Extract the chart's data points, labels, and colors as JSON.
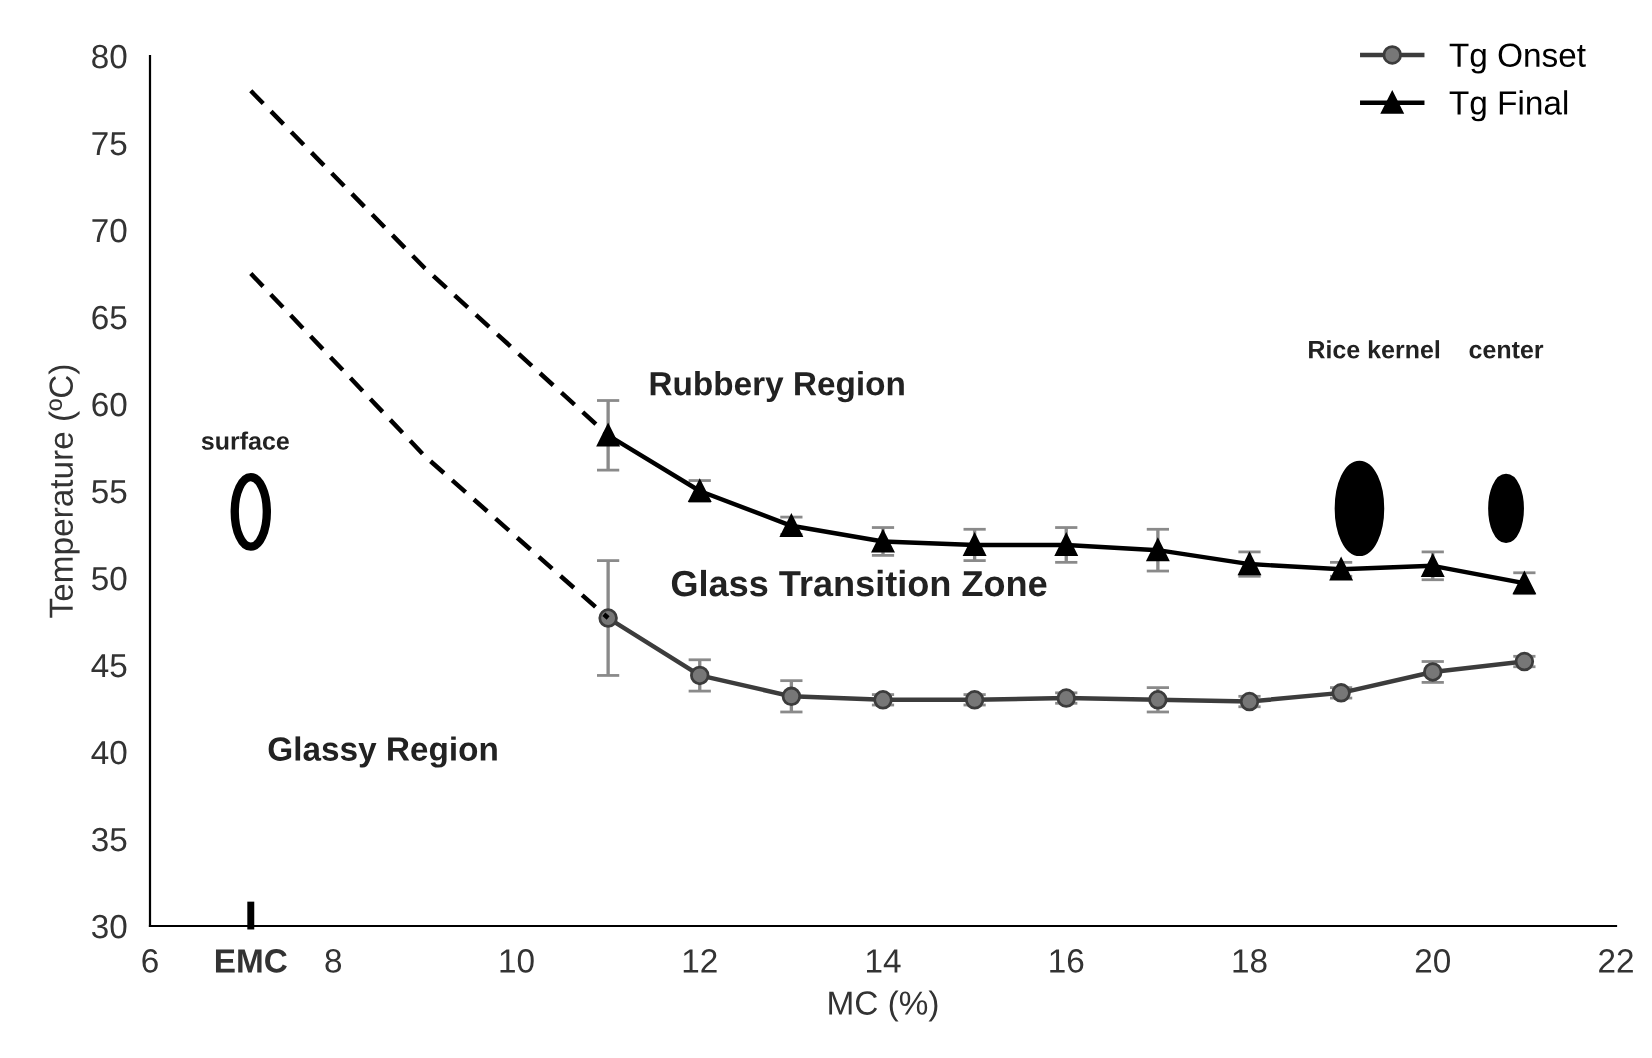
{
  "chart_data": {
    "type": "line",
    "xlabel": "MC (%)",
    "ylabel": "Temperature (ºC)",
    "xlim": [
      6,
      22
    ],
    "xticks": [
      6,
      {
        "value": 7.1,
        "label": "EMC"
      },
      8,
      10,
      12,
      14,
      16,
      18,
      20,
      22
    ],
    "ylim": [
      30,
      80
    ],
    "yticks": [
      30,
      35,
      40,
      45,
      50,
      55,
      60,
      65,
      70,
      75,
      80
    ],
    "grid": false,
    "legend": "top right",
    "series": [
      {
        "name": "Tg Onset",
        "color": "#3c3c3c",
        "marker": "circle",
        "x": [
          11,
          12,
          13,
          14,
          15,
          16,
          17,
          18,
          19,
          20,
          21
        ],
        "values": [
          47.7,
          44.4,
          43.2,
          43.0,
          43.0,
          43.1,
          43.0,
          42.9,
          43.4,
          44.6,
          45.2
        ],
        "errors": [
          3.3,
          0.9,
          0.9,
          0.3,
          0.3,
          0.3,
          0.7,
          0.3,
          0.3,
          0.6,
          0.3
        ]
      },
      {
        "name": "Tg Final",
        "color": "#000000",
        "marker": "triangle",
        "x": [
          11,
          12,
          13,
          14,
          15,
          16,
          17,
          18,
          19,
          20,
          21
        ],
        "values": [
          58.2,
          55.0,
          53.0,
          52.1,
          51.9,
          51.9,
          51.6,
          50.8,
          50.5,
          50.7,
          49.7
        ],
        "errors": [
          2.0,
          0.6,
          0.5,
          0.8,
          0.9,
          1.0,
          1.2,
          0.7,
          0.4,
          0.8,
          0.6
        ]
      },
      {
        "color": "#000000",
        "marker": "none",
        "line_style": "dashed",
        "x": [
          7.1,
          9,
          11
        ],
        "values": [
          67.5,
          57.0,
          47.7
        ]
      },
      {
        "color": "#000000",
        "marker": "none",
        "line_style": "dashed",
        "x": [
          7.1,
          9,
          11
        ],
        "values": [
          78.0,
          67.8,
          58.2
        ]
      }
    ],
    "annotations": [
      "Rubbery Region",
      "Glass Transition Zone",
      "Glassy Region",
      "surface",
      "Rice kernel",
      "center"
    ]
  }
}
